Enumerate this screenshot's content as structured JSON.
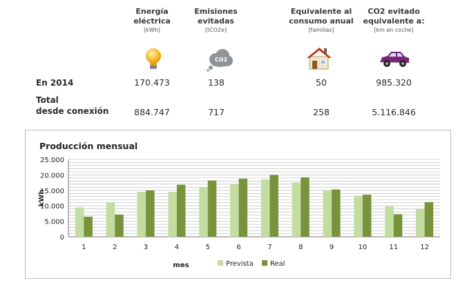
{
  "summary": {
    "columns": [
      {
        "title1": "Energía",
        "title2": "eléctrica",
        "unit": "[kWh]",
        "icon": "lightbulb-icon"
      },
      {
        "title1": "Emisiones",
        "title2": "evitadas",
        "unit": "[tCO2e]",
        "icon": "co2-cloud-icon"
      },
      {
        "title1": "Equivalente al",
        "title2": "consumo anual",
        "unit": "[familias]",
        "icon": "house-icon"
      },
      {
        "title1": "CO2 evitado",
        "title2": "equivalente a:",
        "unit": "[km en coche]",
        "icon": "car-icon"
      }
    ],
    "rows": [
      {
        "label1": "En 2014",
        "label2": "",
        "values": [
          "170.473",
          "138",
          "50",
          "985.320"
        ]
      },
      {
        "label1": "Total",
        "label2": "desde conexión",
        "values": [
          "884.747",
          "717",
          "258",
          "5.116.846"
        ]
      }
    ],
    "co2_badge": "CO2"
  },
  "chart_data": {
    "type": "bar",
    "title": "Producción mensual",
    "xlabel": "mes",
    "ylabel": "kWh",
    "ylim": [
      0,
      25000
    ],
    "yticks": [
      "0",
      "5.000",
      "10.000",
      "15.000",
      "20.000",
      "25.000"
    ],
    "categories": [
      "1",
      "2",
      "3",
      "4",
      "5",
      "6",
      "7",
      "8",
      "9",
      "10",
      "11",
      "12"
    ],
    "series": [
      {
        "name": "Prevista",
        "color": "#c3dca0",
        "values": [
          9500,
          11000,
          14500,
          14500,
          16000,
          17000,
          18500,
          17500,
          15000,
          13300,
          9800,
          9000
        ]
      },
      {
        "name": "Real",
        "color": "#77933c",
        "values": [
          6500,
          7200,
          15000,
          16800,
          18200,
          18800,
          20000,
          19200,
          15300,
          13600,
          7300,
          11200
        ]
      }
    ],
    "grid": true,
    "legend": "bottom"
  }
}
